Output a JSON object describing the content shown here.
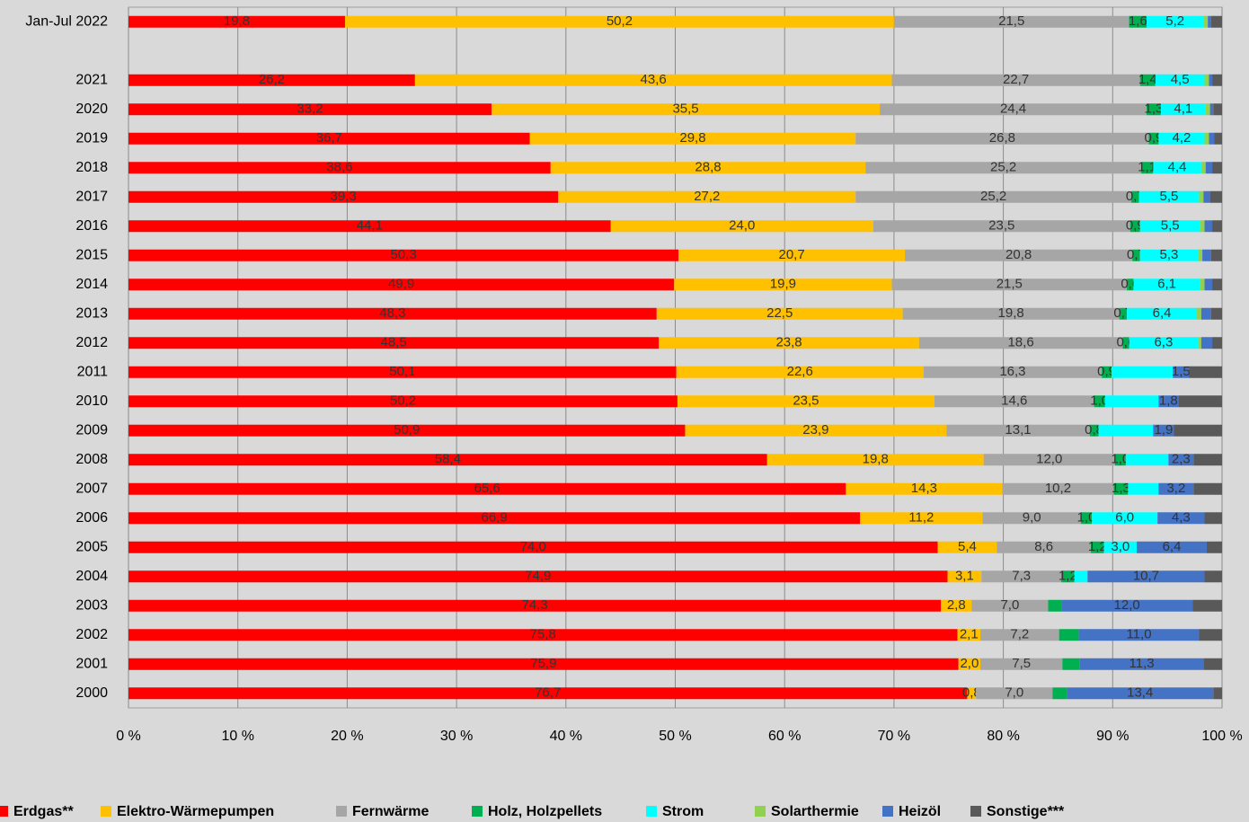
{
  "chart_data": {
    "type": "stacked_barh",
    "categories": [
      "Jan-Jul 2022",
      null,
      "2021",
      "2020",
      "2019",
      "2018",
      "2017",
      "2016",
      "2015",
      "2014",
      "2013",
      "2012",
      "2011",
      "2010",
      "2009",
      "2008",
      "2007",
      "2006",
      "2005",
      "2004",
      "2003",
      "2002",
      "2001",
      "2000"
    ],
    "series": [
      {
        "name": "Erdgas**",
        "color": "#ff0000",
        "values": [
          19.8,
          null,
          26.2,
          33.2,
          36.7,
          38.6,
          39.3,
          44.1,
          50.3,
          49.9,
          48.3,
          48.5,
          50.1,
          50.2,
          50.9,
          58.4,
          65.6,
          66.9,
          74.0,
          74.9,
          74.3,
          75.8,
          75.9,
          76.7
        ],
        "value_labels": [
          "19,8",
          null,
          "26,2",
          "33,2",
          "36,7",
          "38,6",
          "39,3",
          "44,1",
          "50,3",
          "49,9",
          "48,3",
          "48,5",
          "50,1",
          "50,2",
          "50,9",
          "58,4",
          "65,6",
          "66,9",
          "74,0",
          "74,9",
          "74,3",
          "75,8",
          "75,9",
          "76,7"
        ]
      },
      {
        "name": "Elektro-Wärmepumpen",
        "color": "#ffc000",
        "values": [
          50.2,
          null,
          43.6,
          35.5,
          29.8,
          28.8,
          27.2,
          24.0,
          20.7,
          19.9,
          22.5,
          23.8,
          22.6,
          23.5,
          23.9,
          19.8,
          14.3,
          11.2,
          5.4,
          3.1,
          2.8,
          2.1,
          2.0,
          0.8
        ],
        "value_labels": [
          "50,2",
          null,
          "43,6",
          "35,5",
          "29,8",
          "28,8",
          "27,2",
          "24,0",
          "20,7",
          "19,9",
          "22,5",
          "23,8",
          "22,6",
          "23,5",
          "23,9",
          "19,8",
          "14,3",
          "11,2",
          "5,4",
          "3,1",
          "2,8",
          "2,1",
          "2,0",
          "0,8"
        ]
      },
      {
        "name": "Fernwärme",
        "color": "#a6a6a6",
        "values": [
          21.5,
          null,
          22.7,
          24.4,
          26.8,
          25.2,
          25.2,
          23.5,
          20.8,
          21.5,
          19.8,
          18.6,
          16.3,
          14.6,
          13.1,
          12.0,
          10.2,
          9.0,
          8.6,
          7.3,
          7.0,
          7.2,
          7.5,
          7.0
        ],
        "value_labels": [
          "21,5",
          null,
          "22,7",
          "24,4",
          "26,8",
          "25,2",
          "25,2",
          "23,5",
          "20,8",
          "21,5",
          "19,8",
          "18,6",
          "16,3",
          "14,6",
          "13,1",
          "12,0",
          "10,2",
          "9,0",
          "8,6",
          "7,3",
          "7,0",
          "7,2",
          "7,5",
          "7,0"
        ]
      },
      {
        "name": "Holz, Holzpellets",
        "color": "#00b050",
        "values": [
          1.6,
          null,
          1.4,
          1.3,
          0.9,
          1.1,
          0.7,
          0.9,
          0.7,
          0.6,
          0.7,
          0.6,
          0.9,
          1.0,
          0.8,
          1.0,
          1.3,
          1.0,
          1.2,
          1.2,
          1.2,
          1.8,
          1.6,
          1.3
        ],
        "value_labels": [
          "1,6",
          null,
          "1,4",
          "1,3",
          "0,9",
          "1,1",
          "0,7",
          "0,9",
          "0,7",
          "0,6",
          "0,7",
          "0,6",
          "0,9",
          "1,0",
          "0,8",
          "1,0",
          "1,3",
          "1,0",
          "1,2",
          "1,2",
          null,
          null,
          null,
          null
        ]
      },
      {
        "name": "Strom",
        "color": "#00ffff",
        "values": [
          5.2,
          null,
          4.5,
          4.1,
          4.2,
          4.4,
          5.5,
          5.5,
          5.3,
          6.1,
          6.4,
          6.3,
          5.6,
          4.9,
          5.0,
          3.9,
          2.8,
          6.0,
          3.0,
          1.2,
          0,
          0,
          0,
          0
        ],
        "value_labels": [
          "5,2",
          null,
          "4,5",
          "4,1",
          "4,2",
          "4,4",
          "5,5",
          "5,5",
          "5,3",
          "6,1",
          "6,4",
          "6,3",
          null,
          null,
          null,
          null,
          null,
          "6,0",
          "3,0",
          null,
          null,
          null,
          null,
          null
        ]
      },
      {
        "name": "Solarthermie",
        "color": "#92d050",
        "values": [
          0.4,
          null,
          0.4,
          0.4,
          0.4,
          0.4,
          0.4,
          0.4,
          0.4,
          0.4,
          0.4,
          0.3,
          0,
          0,
          0,
          0,
          0,
          0,
          0,
          0,
          0,
          0,
          0,
          0
        ]
      },
      {
        "name": "Heizöl",
        "color": "#4472c4",
        "values": [
          0.3,
          null,
          0.3,
          0.3,
          0.5,
          0.6,
          0.6,
          0.7,
          0.8,
          0.7,
          0.9,
          1.0,
          1.5,
          1.8,
          1.9,
          2.3,
          3.2,
          4.3,
          6.4,
          10.7,
          12.0,
          11.0,
          11.3,
          13.4
        ],
        "value_labels": [
          null,
          null,
          null,
          null,
          null,
          null,
          null,
          null,
          null,
          null,
          null,
          null,
          "1,5",
          "1,8",
          "1,9",
          "2,3",
          "3,2",
          "4,3",
          "6,4",
          "10,7",
          "12,0",
          "11,0",
          "11,3",
          "13,4"
        ]
      },
      {
        "name": "Sonstige***",
        "color": "#595959",
        "values": [
          1.0,
          null,
          0.9,
          0.8,
          0.7,
          0.9,
          1.1,
          0.9,
          1.0,
          0.9,
          1.0,
          0.9,
          3.0,
          4.0,
          4.4,
          2.6,
          2.6,
          1.6,
          1.4,
          1.6,
          2.7,
          2.1,
          1.7,
          0.8
        ]
      }
    ],
    "xlim": [
      0,
      100
    ],
    "xticks": [
      {
        "value": 0,
        "label": "0 %"
      },
      {
        "value": 10,
        "label": "10 %"
      },
      {
        "value": 20,
        "label": "20 %"
      },
      {
        "value": 30,
        "label": "30 %"
      },
      {
        "value": 40,
        "label": "40 %"
      },
      {
        "value": 50,
        "label": "50 %"
      },
      {
        "value": 60,
        "label": "60 %"
      },
      {
        "value": 70,
        "label": "70 %"
      },
      {
        "value": 80,
        "label": "80 %"
      },
      {
        "value": 90,
        "label": "90 %"
      },
      {
        "value": 100,
        "label": "100 %"
      }
    ],
    "grid": true
  }
}
